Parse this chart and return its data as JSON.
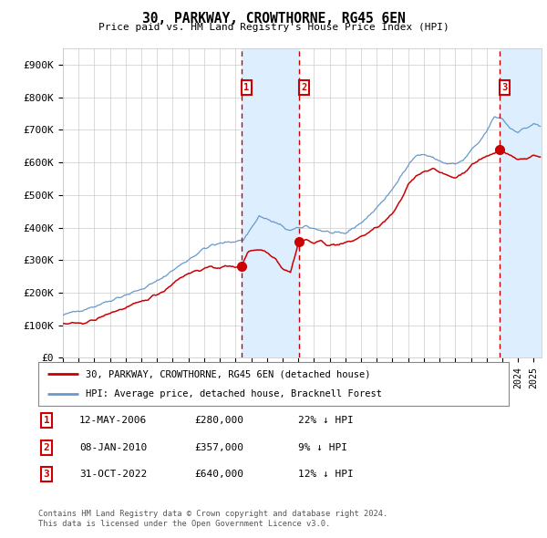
{
  "title": "30, PARKWAY, CROWTHORNE, RG45 6EN",
  "subtitle": "Price paid vs. HM Land Registry's House Price Index (HPI)",
  "xlim_start": 1995.0,
  "xlim_end": 2025.5,
  "ylim": [
    0,
    950000
  ],
  "yticks": [
    0,
    100000,
    200000,
    300000,
    400000,
    500000,
    600000,
    700000,
    800000,
    900000
  ],
  "ytick_labels": [
    "£0",
    "£100K",
    "£200K",
    "£300K",
    "£400K",
    "£500K",
    "£600K",
    "£700K",
    "£800K",
    "£900K"
  ],
  "sale_dates": [
    2006.36,
    2010.03,
    2022.83
  ],
  "sale_prices": [
    280000,
    357000,
    640000
  ],
  "sale_labels": [
    "1",
    "2",
    "3"
  ],
  "legend_red": "30, PARKWAY, CROWTHORNE, RG45 6EN (detached house)",
  "legend_blue": "HPI: Average price, detached house, Bracknell Forest",
  "table_rows": [
    [
      "1",
      "12-MAY-2006",
      "£280,000",
      "22% ↓ HPI"
    ],
    [
      "2",
      "08-JAN-2010",
      "£357,000",
      "9% ↓ HPI"
    ],
    [
      "3",
      "31-OCT-2022",
      "£640,000",
      "12% ↓ HPI"
    ]
  ],
  "footnote1": "Contains HM Land Registry data © Crown copyright and database right 2024.",
  "footnote2": "This data is licensed under the Open Government Licence v3.0.",
  "red_color": "#cc0000",
  "blue_color": "#6699cc",
  "shade_color": "#ddeeff",
  "grid_color": "#cccccc",
  "background_color": "#ffffff"
}
